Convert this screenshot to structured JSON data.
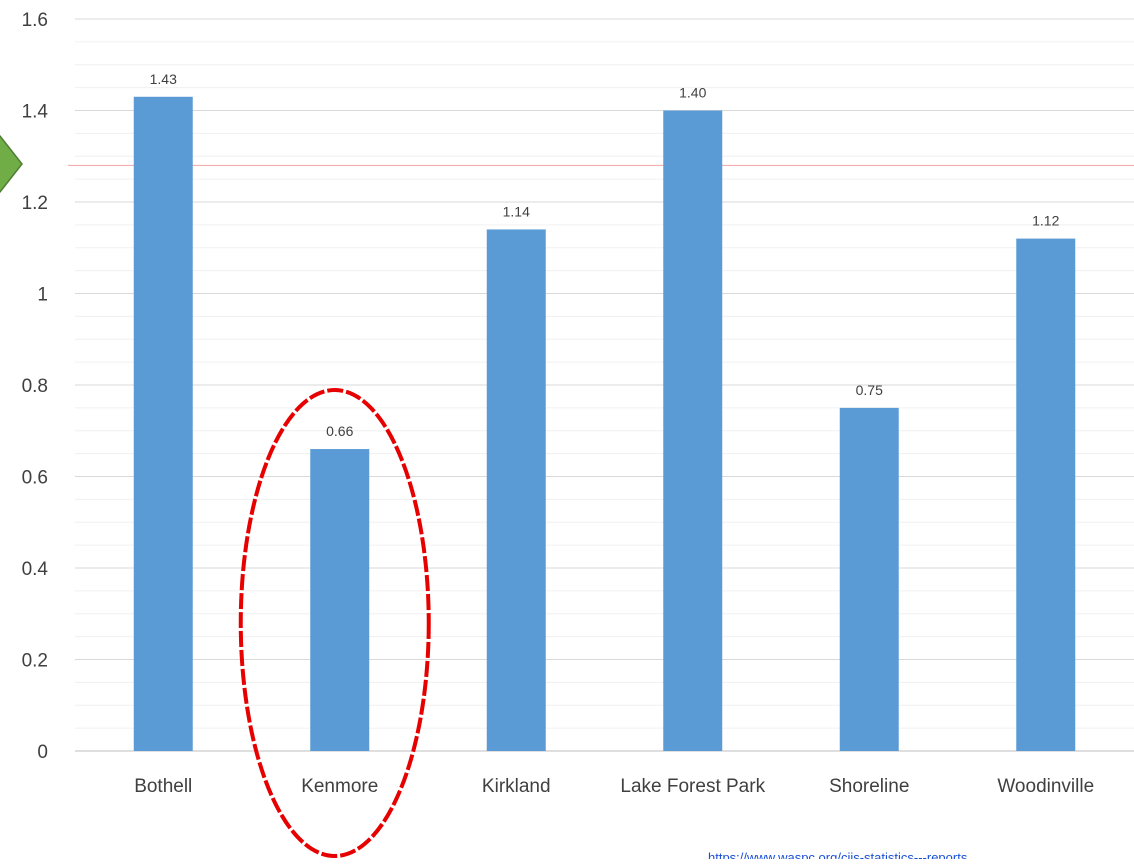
{
  "chart_data": {
    "type": "bar",
    "title": "",
    "xlabel": "",
    "ylabel": "",
    "categories": [
      "Bothell",
      "Kenmore",
      "Kirkland",
      "Lake Forest Park",
      "Shoreline",
      "Woodinville"
    ],
    "values": [
      1.43,
      0.66,
      1.14,
      1.4,
      0.75,
      1.12
    ],
    "value_labels": [
      "1.43",
      "0.66",
      "1.14",
      "1.40",
      "0.75",
      "1.12"
    ],
    "ylim": [
      0,
      1.6
    ],
    "yticks": [
      0,
      0.2,
      0.4,
      0.6,
      0.8,
      1,
      1.2,
      1.4,
      1.6
    ],
    "ytick_labels": [
      "0",
      "0.2",
      "0.4",
      "0.6",
      "0.8",
      "1",
      "1.2",
      "1.4",
      "1.6"
    ],
    "minor_gridlines": true,
    "bar_color": "#5B9BD5",
    "highlighted_category": "Kenmore",
    "highlight_color": "#E60000",
    "reference_line_color": "#F4A3A3",
    "arrow_color": "#70AD47"
  },
  "source_link": "https://www.waspc.org/cjis-statistics---reports"
}
